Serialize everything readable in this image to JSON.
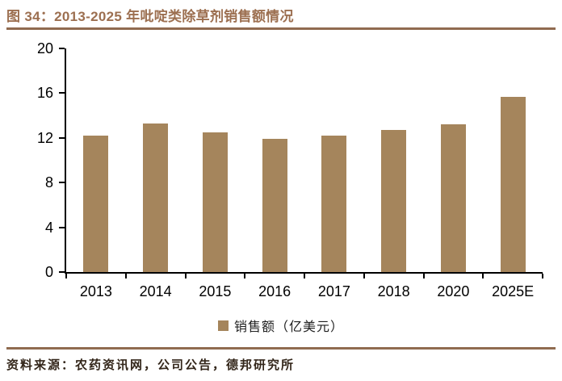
{
  "header": {
    "title": "图 34：2013-2025 年吡啶类除草剂销售额情况"
  },
  "chart_data": {
    "type": "bar",
    "title": "图 34：2013-2025 年吡啶类除草剂销售额情况",
    "categories": [
      "2013",
      "2014",
      "2015",
      "2016",
      "2017",
      "2018",
      "2020",
      "2025E"
    ],
    "values": [
      12.2,
      13.3,
      12.5,
      11.9,
      12.2,
      12.7,
      13.2,
      15.7
    ],
    "legend": "销售额（亿美元）",
    "legend_position": "bottom",
    "xlabel": "",
    "ylabel": "",
    "ylim": [
      0,
      20
    ],
    "yticks": [
      0,
      4,
      8,
      12,
      16,
      20
    ],
    "grid": false,
    "bar_color": "#a5855c"
  },
  "footer": {
    "source": "资料来源：农药资讯网，公司公告，德邦研究所"
  },
  "colors": {
    "title_text": "#9c6f50",
    "divider_rule": "#906b50",
    "bar_fill": "#a5855c",
    "axis": "#000000",
    "source_text": "#33261a"
  }
}
